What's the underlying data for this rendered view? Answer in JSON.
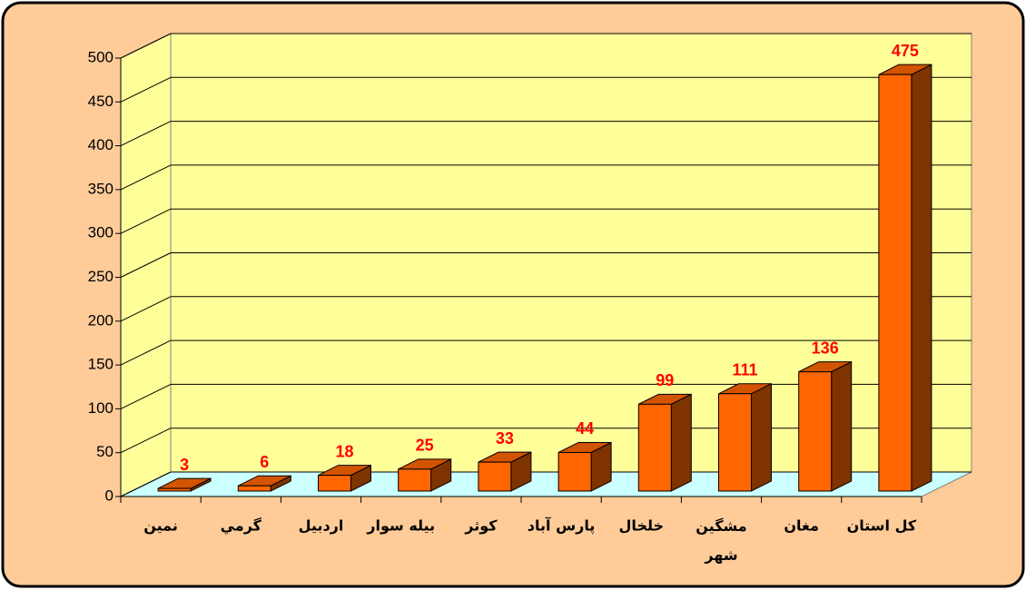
{
  "chart_data": {
    "type": "bar3d",
    "categories": [
      "نمين",
      "گرمي",
      "اردبيل",
      "بيله سوار",
      "كوثر",
      "پارس آباد",
      "خلخال",
      "مشگين شهر",
      "مغان",
      "كل استان"
    ],
    "values": [
      3,
      6,
      18,
      25,
      33,
      44,
      99,
      111,
      136,
      475
    ],
    "color": "#ff6600",
    "label_color": "#ff0000",
    "ylim": [
      0,
      500
    ],
    "yticks": [
      0,
      50,
      100,
      150,
      200,
      250,
      300,
      350,
      400,
      450,
      500
    ],
    "grid": true
  }
}
